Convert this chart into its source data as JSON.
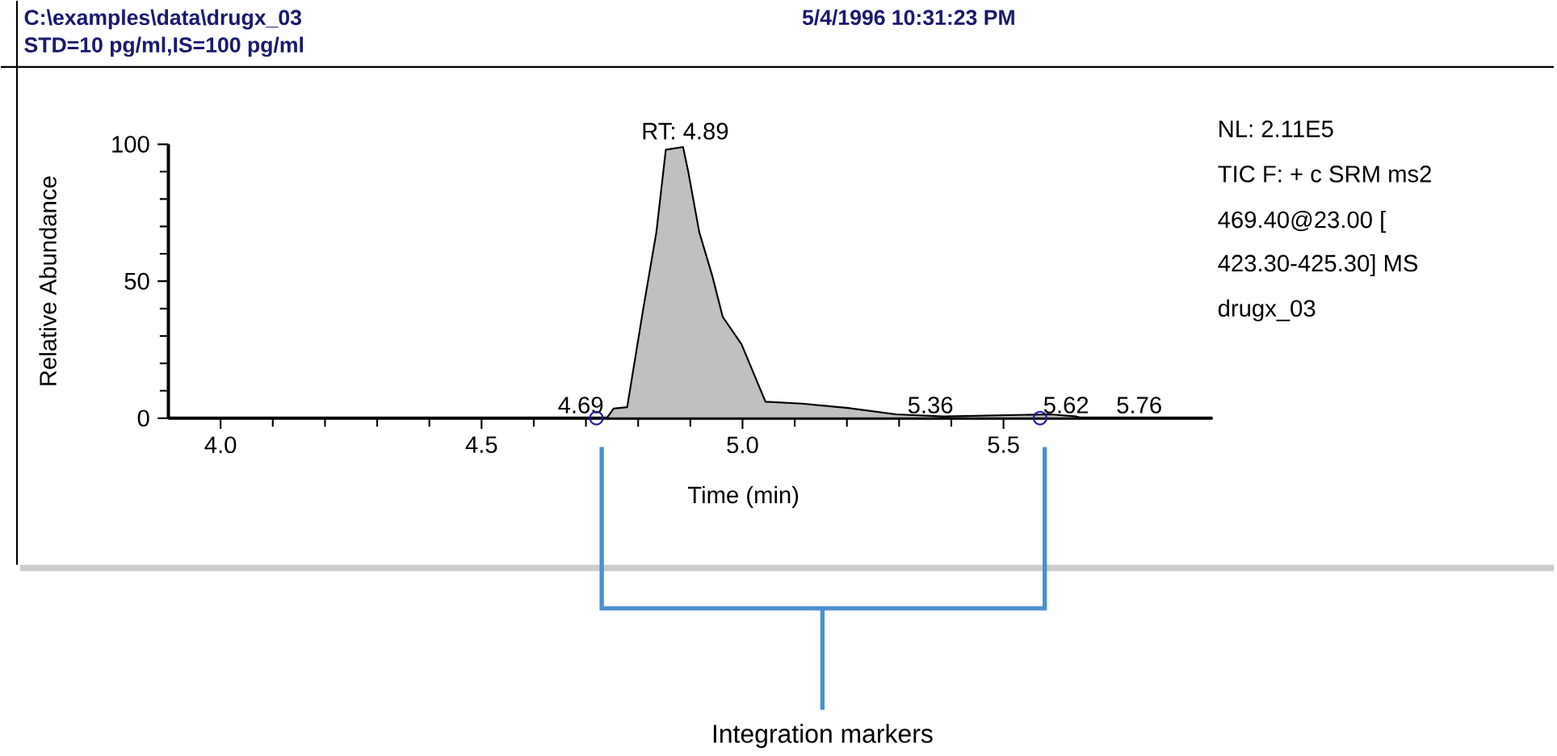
{
  "chart_data": {
    "type": "area",
    "title": "C:\\examples\\data\\drugx_03",
    "subtitle": "STD=10 pg/ml,IS=100 pg/ml",
    "xlabel": "Time (min)",
    "ylabel": "Relative Abundance",
    "xlim": [
      3.9,
      5.9
    ],
    "ylim": [
      0,
      100
    ],
    "xticks": [
      {
        "value": 4.0,
        "label": "4.0"
      },
      {
        "value": 4.5,
        "label": "4.5"
      },
      {
        "value": 5.0,
        "label": "5.0"
      },
      {
        "value": 5.5,
        "label": "5.5"
      }
    ],
    "yticks": [
      0,
      50,
      100
    ],
    "series": [
      {
        "color": "#c0c0c0",
        "x": [
          3.9,
          4.74,
          4.753,
          4.779,
          4.809,
          4.835,
          4.853,
          4.886,
          4.896,
          4.917,
          4.942,
          4.962,
          4.998,
          5.044,
          5.115,
          5.202,
          5.294,
          5.385,
          5.589,
          5.64,
          5.65,
          5.9
        ],
        "values": [
          0,
          0,
          3.5,
          4,
          39,
          68,
          98,
          99,
          90,
          68,
          52,
          37,
          27,
          6,
          5.3,
          3.7,
          1.4,
          0.6,
          1.4,
          0.6,
          0,
          0
        ]
      },
      {
        "type": "scatter",
        "color": "#1a1aa0",
        "marker": "circle",
        "x": [
          4.72,
          5.57
        ],
        "values": [
          0,
          0
        ]
      }
    ],
    "annotations": [
      {
        "text": "RT: 4.89",
        "x": 4.89,
        "y": 100
      },
      {
        "text": "4.69",
        "x": 4.69,
        "y": 0
      },
      {
        "text": "5.36",
        "x": 5.36,
        "y": 0
      },
      {
        "text": "5.62",
        "x": 5.62,
        "y": 0
      },
      {
        "text": "5.76",
        "x": 5.76,
        "y": 0
      },
      "5/4/1996 10:31:23 PM",
      "NL: 2.11E5",
      "TIC F: + c SRM ms2",
      "469.40@23.00 [",
      "423.30-425.30]  MS",
      "drugx_03",
      "Integration markers"
    ]
  }
}
